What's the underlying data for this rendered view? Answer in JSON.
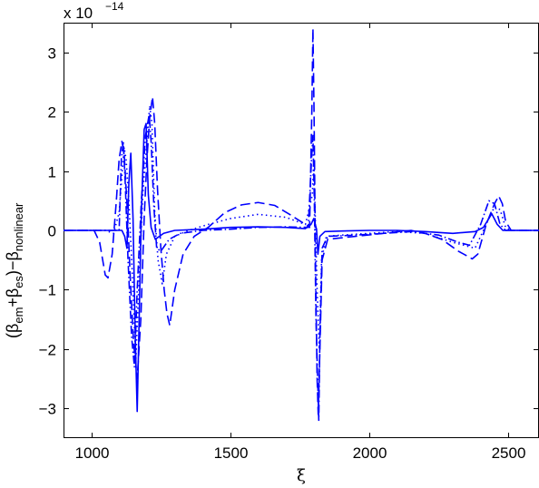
{
  "chart_data": {
    "type": "line",
    "title": "",
    "xlabel": "ξ",
    "ylabel_parts": {
      "open": "(",
      "beta1": "β",
      "em": "em",
      "plus": "+",
      "beta2": "β",
      "es": "es",
      "close_minus": ")−",
      "beta3": "β",
      "nonlinear": "nonlinear"
    },
    "y_multiplier": {
      "prefix": "x 10",
      "exponent": "−14"
    },
    "xlim": [
      900,
      2610
    ],
    "ylim": [
      -3.5,
      3.5
    ],
    "xticks": [
      1000,
      1500,
      2000,
      2500
    ],
    "yticks": [
      -3,
      -2,
      -1,
      0,
      1,
      2,
      3
    ],
    "xtick_labels": [
      "1000",
      "1500",
      "2000",
      "2500"
    ],
    "ytick_labels": [
      "−3",
      "−2",
      "−1",
      "0",
      "1",
      "2",
      "3"
    ],
    "grid": false,
    "legend": "none",
    "color": "#0000ff",
    "series": [
      {
        "style": "solid",
        "points": [
          [
            900,
            0
          ],
          [
            1110,
            0
          ],
          [
            1120,
            -0.1
          ],
          [
            1128,
            -0.3
          ],
          [
            1135,
            0.8
          ],
          [
            1142,
            1.3
          ],
          [
            1150,
            0.2
          ],
          [
            1158,
            -1.8
          ],
          [
            1165,
            -3.05
          ],
          [
            1172,
            -1.5
          ],
          [
            1180,
            0.3
          ],
          [
            1190,
            1.7
          ],
          [
            1197,
            1.8
          ],
          [
            1205,
            0.6
          ],
          [
            1215,
            0.05
          ],
          [
            1230,
            -0.15
          ],
          [
            1260,
            -0.05
          ],
          [
            1300,
            0
          ],
          [
            1400,
            0.02
          ],
          [
            1500,
            0.05
          ],
          [
            1600,
            0.06
          ],
          [
            1700,
            0.05
          ],
          [
            1770,
            0.03
          ],
          [
            1790,
            0.1
          ],
          [
            1800,
            0.2
          ],
          [
            1810,
            0.02
          ],
          [
            1815,
            -0.4
          ],
          [
            1822,
            -0.1
          ],
          [
            1840,
            -0.02
          ],
          [
            1900,
            -0.01
          ],
          [
            2000,
            0
          ],
          [
            2100,
            0
          ],
          [
            2200,
            -0.02
          ],
          [
            2300,
            -0.05
          ],
          [
            2380,
            -0.02
          ],
          [
            2410,
            0.05
          ],
          [
            2440,
            0.28
          ],
          [
            2460,
            0.1
          ],
          [
            2480,
            0
          ],
          [
            2610,
            0
          ]
        ]
      },
      {
        "style": "dotted",
        "points": [
          [
            900,
            0
          ],
          [
            1050,
            0
          ],
          [
            1080,
            -0.05
          ],
          [
            1100,
            0.3
          ],
          [
            1118,
            1.4
          ],
          [
            1125,
            1.2
          ],
          [
            1135,
            0.5
          ],
          [
            1148,
            -0.8
          ],
          [
            1160,
            -2.2
          ],
          [
            1172,
            -0.8
          ],
          [
            1185,
            0.6
          ],
          [
            1200,
            1.5
          ],
          [
            1210,
            2.1
          ],
          [
            1218,
            1.8
          ],
          [
            1228,
            0.3
          ],
          [
            1240,
            -0.5
          ],
          [
            1255,
            -0.9
          ],
          [
            1270,
            -0.4
          ],
          [
            1300,
            -0.1
          ],
          [
            1350,
            0
          ],
          [
            1420,
            0.1
          ],
          [
            1500,
            0.2
          ],
          [
            1600,
            0.27
          ],
          [
            1700,
            0.22
          ],
          [
            1770,
            0.1
          ],
          [
            1795,
            0.6
          ],
          [
            1800,
            1.2
          ],
          [
            1805,
            0.3
          ],
          [
            1812,
            -1.0
          ],
          [
            1820,
            -2.0
          ],
          [
            1828,
            -0.5
          ],
          [
            1845,
            -0.1
          ],
          [
            1900,
            -0.08
          ],
          [
            2000,
            -0.05
          ],
          [
            2100,
            -0.02
          ],
          [
            2200,
            -0.05
          ],
          [
            2300,
            -0.2
          ],
          [
            2380,
            -0.3
          ],
          [
            2410,
            0.0
          ],
          [
            2450,
            0.4
          ],
          [
            2470,
            0.35
          ],
          [
            2490,
            0.05
          ],
          [
            2510,
            0
          ],
          [
            2610,
            0
          ]
        ]
      },
      {
        "style": "dashdot",
        "points": [
          [
            900,
            0
          ],
          [
            1100,
            0
          ],
          [
            1108,
            1.2
          ],
          [
            1115,
            1.5
          ],
          [
            1122,
            0.8
          ],
          [
            1132,
            -0.5
          ],
          [
            1145,
            -1.8
          ],
          [
            1155,
            -2.3
          ],
          [
            1165,
            -1.0
          ],
          [
            1180,
            0.5
          ],
          [
            1195,
            1.6
          ],
          [
            1208,
            1.95
          ],
          [
            1215,
            1.5
          ],
          [
            1225,
            0.4
          ],
          [
            1235,
            -0.3
          ],
          [
            1250,
            -0.35
          ],
          [
            1280,
            -0.15
          ],
          [
            1320,
            -0.05
          ],
          [
            1400,
            0
          ],
          [
            1500,
            0.02
          ],
          [
            1600,
            0.05
          ],
          [
            1700,
            0.06
          ],
          [
            1780,
            0.05
          ],
          [
            1792,
            1.2
          ],
          [
            1797,
            1.6
          ],
          [
            1802,
            0.5
          ],
          [
            1808,
            -1.5
          ],
          [
            1818,
            -3.2
          ],
          [
            1822,
            -1.8
          ],
          [
            1830,
            -0.3
          ],
          [
            1850,
            -0.1
          ],
          [
            1950,
            -0.08
          ],
          [
            2050,
            -0.05
          ],
          [
            2150,
            -0.02
          ],
          [
            2250,
            -0.08
          ],
          [
            2320,
            -0.2
          ],
          [
            2360,
            -0.25
          ],
          [
            2400,
            0.1
          ],
          [
            2430,
            0.5
          ],
          [
            2450,
            0.45
          ],
          [
            2470,
            0.1
          ],
          [
            2490,
            0
          ],
          [
            2610,
            0
          ]
        ]
      },
      {
        "style": "dashed",
        "points": [
          [
            900,
            0
          ],
          [
            1010,
            0
          ],
          [
            1030,
            -0.2
          ],
          [
            1050,
            -0.75
          ],
          [
            1060,
            -0.8
          ],
          [
            1075,
            -0.4
          ],
          [
            1090,
            0.5
          ],
          [
            1100,
            1.2
          ],
          [
            1110,
            1.5
          ],
          [
            1118,
            1.3
          ],
          [
            1130,
            0.3
          ],
          [
            1140,
            -0.8
          ],
          [
            1152,
            -1.9
          ],
          [
            1165,
            -2.5
          ],
          [
            1178,
            -1.5
          ],
          [
            1190,
            0.2
          ],
          [
            1200,
            1.2
          ],
          [
            1210,
            1.9
          ],
          [
            1220,
            2.25
          ],
          [
            1228,
            1.8
          ],
          [
            1238,
            0.7
          ],
          [
            1250,
            -0.3
          ],
          [
            1262,
            -1.0
          ],
          [
            1272,
            -1.4
          ],
          [
            1282,
            -1.6
          ],
          [
            1300,
            -1.0
          ],
          [
            1330,
            -0.4
          ],
          [
            1370,
            -0.1
          ],
          [
            1420,
            0.05
          ],
          [
            1480,
            0.3
          ],
          [
            1540,
            0.43
          ],
          [
            1600,
            0.47
          ],
          [
            1660,
            0.42
          ],
          [
            1720,
            0.25
          ],
          [
            1770,
            0.1
          ],
          [
            1785,
            0.05
          ],
          [
            1793,
            2.0
          ],
          [
            1797,
            3.4
          ],
          [
            1801,
            2.0
          ],
          [
            1806,
            -0.5
          ],
          [
            1812,
            -2.5
          ],
          [
            1816,
            -3.1
          ],
          [
            1822,
            -2.0
          ],
          [
            1830,
            -0.5
          ],
          [
            1850,
            -0.15
          ],
          [
            1950,
            -0.1
          ],
          [
            2050,
            -0.05
          ],
          [
            2150,
            0
          ],
          [
            2200,
            -0.05
          ],
          [
            2260,
            -0.15
          ],
          [
            2320,
            -0.35
          ],
          [
            2370,
            -0.48
          ],
          [
            2390,
            -0.4
          ],
          [
            2420,
            0.1
          ],
          [
            2450,
            0.45
          ],
          [
            2465,
            0.58
          ],
          [
            2478,
            0.45
          ],
          [
            2490,
            0.15
          ],
          [
            2510,
            0
          ],
          [
            2610,
            0
          ]
        ]
      }
    ]
  }
}
